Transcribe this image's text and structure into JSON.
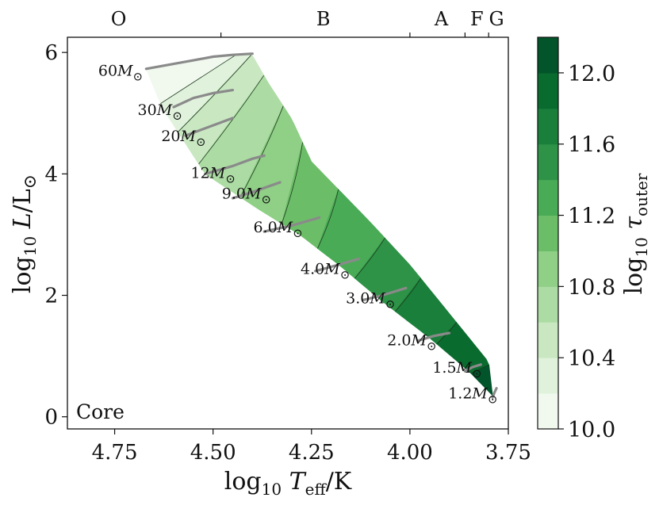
{
  "chart_data": {
    "type": "heatmap",
    "title": "",
    "xlabel": "log10 Teff/K",
    "ylabel": "log10 L/L⊙",
    "xlim": [
      4.87,
      3.75
    ],
    "ylim": [
      -0.2,
      6.25
    ],
    "x_inverted": true,
    "x_ticks": [
      4.75,
      4.5,
      4.25,
      4.0,
      3.75
    ],
    "x_tick_labels": [
      "4.75",
      "4.50",
      "4.25",
      "4.00",
      "3.75"
    ],
    "y_ticks": [
      0,
      2,
      4,
      6
    ],
    "y_tick_labels": [
      "0",
      "2",
      "4",
      "6"
    ],
    "spectral_types": [
      {
        "label": "O",
        "x": 4.74
      },
      {
        "label": "B",
        "x": 4.22
      },
      {
        "label": "A",
        "x": 3.92
      },
      {
        "label": "F",
        "x": 3.83
      },
      {
        "label": "G",
        "x": 3.78
      }
    ],
    "spectral_boundaries": [
      4.48,
      4.0,
      3.86,
      3.8
    ],
    "corner_label": "Core",
    "colorbar": {
      "label": "log10 τouter",
      "range": [
        10.0,
        12.2
      ],
      "levels": [
        10.0,
        10.2,
        10.4,
        10.6,
        10.8,
        11.0,
        11.2,
        11.4,
        11.6,
        11.8,
        12.0,
        12.2
      ],
      "tick_values": [
        10.0,
        10.4,
        10.8,
        11.2,
        11.6,
        12.0
      ],
      "tick_labels": [
        "10.0",
        "10.4",
        "10.8",
        "11.2",
        "11.6",
        "12.0"
      ],
      "colors": [
        "#f1f9ef",
        "#e0f2dc",
        "#c9e8c2",
        "#acdca4",
        "#8fcf86",
        "#6cbd68",
        "#4aab57",
        "#2e9347",
        "#1a7f3b",
        "#0a6b2f",
        "#02542a"
      ]
    },
    "band": {
      "upper": [
        [
          4.67,
          5.73
        ],
        [
          4.42,
          5.98
        ],
        [
          4.4,
          5.95
        ],
        [
          4.36,
          5.5
        ],
        [
          4.3,
          4.9
        ],
        [
          4.25,
          4.2
        ],
        [
          4.1,
          3.2
        ],
        [
          4.0,
          2.5
        ],
        [
          3.9,
          1.7
        ],
        [
          3.8,
          0.9
        ],
        [
          3.79,
          0.35
        ]
      ],
      "lower": [
        [
          4.67,
          5.73
        ],
        [
          4.63,
          5.1
        ],
        [
          4.58,
          4.6
        ],
        [
          4.52,
          4.0
        ],
        [
          4.38,
          3.4
        ],
        [
          4.28,
          3.0
        ],
        [
          4.18,
          2.5
        ],
        [
          4.07,
          1.9
        ],
        [
          3.95,
          1.3
        ],
        [
          3.85,
          0.75
        ],
        [
          3.79,
          0.35
        ]
      ]
    },
    "series": [
      {
        "label": "60M⊙",
        "x": [
          4.67,
          4.55,
          4.5,
          4.45,
          4.4
        ],
        "y": [
          5.73,
          5.87,
          5.93,
          5.96,
          5.98
        ],
        "label_at": [
          4.735,
          5.62
        ]
      },
      {
        "label": "30M⊙",
        "x": [
          4.6,
          4.55,
          4.5,
          4.45
        ],
        "y": [
          5.1,
          5.25,
          5.33,
          5.38
        ],
        "label_at": [
          4.635,
          4.97
        ]
      },
      {
        "label": "20M⊙",
        "x": [
          4.57,
          4.5,
          4.45
        ],
        "y": [
          4.63,
          4.8,
          4.92
        ],
        "label_at": [
          4.575,
          4.54
        ]
      },
      {
        "label": "12M⊙",
        "x": [
          4.52,
          4.45,
          4.4,
          4.37
        ],
        "y": [
          4.0,
          4.13,
          4.25,
          4.3
        ],
        "label_at": [
          4.5,
          3.93
        ]
      },
      {
        "label": "9.0M⊙",
        "x": [
          4.45,
          4.4,
          4.33
        ],
        "y": [
          3.6,
          3.7,
          3.86
        ],
        "label_at": [
          4.415,
          3.59
        ]
      },
      {
        "label": "6.0M⊙",
        "x": [
          4.37,
          4.3,
          4.23
        ],
        "y": [
          3.05,
          3.15,
          3.28
        ],
        "label_at": [
          4.335,
          3.04
        ]
      },
      {
        "label": "4.0M⊙",
        "x": [
          4.24,
          4.2,
          4.13
        ],
        "y": [
          2.4,
          2.47,
          2.6
        ],
        "label_at": [
          4.215,
          2.35
        ]
      },
      {
        "label": "3.0M⊙",
        "x": [
          4.12,
          4.07,
          4.01
        ],
        "y": [
          1.92,
          2.0,
          2.12
        ],
        "label_at": [
          4.1,
          1.87
        ]
      },
      {
        "label": "2.0M⊙",
        "x": [
          3.98,
          3.94,
          3.9
        ],
        "y": [
          1.25,
          1.33,
          1.38
        ],
        "label_at": [
          3.995,
          1.18
        ]
      },
      {
        "label": "1.5M⊙",
        "x": [
          3.86,
          3.84,
          3.82
        ],
        "y": [
          0.75,
          0.82,
          0.86
        ],
        "label_at": [
          3.88,
          0.73
        ]
      },
      {
        "label": "1.2M⊙",
        "x": [
          3.79,
          3.785,
          3.78
        ],
        "y": [
          0.32,
          0.4,
          0.47
        ],
        "label_at": [
          3.84,
          0.3
        ]
      }
    ]
  }
}
